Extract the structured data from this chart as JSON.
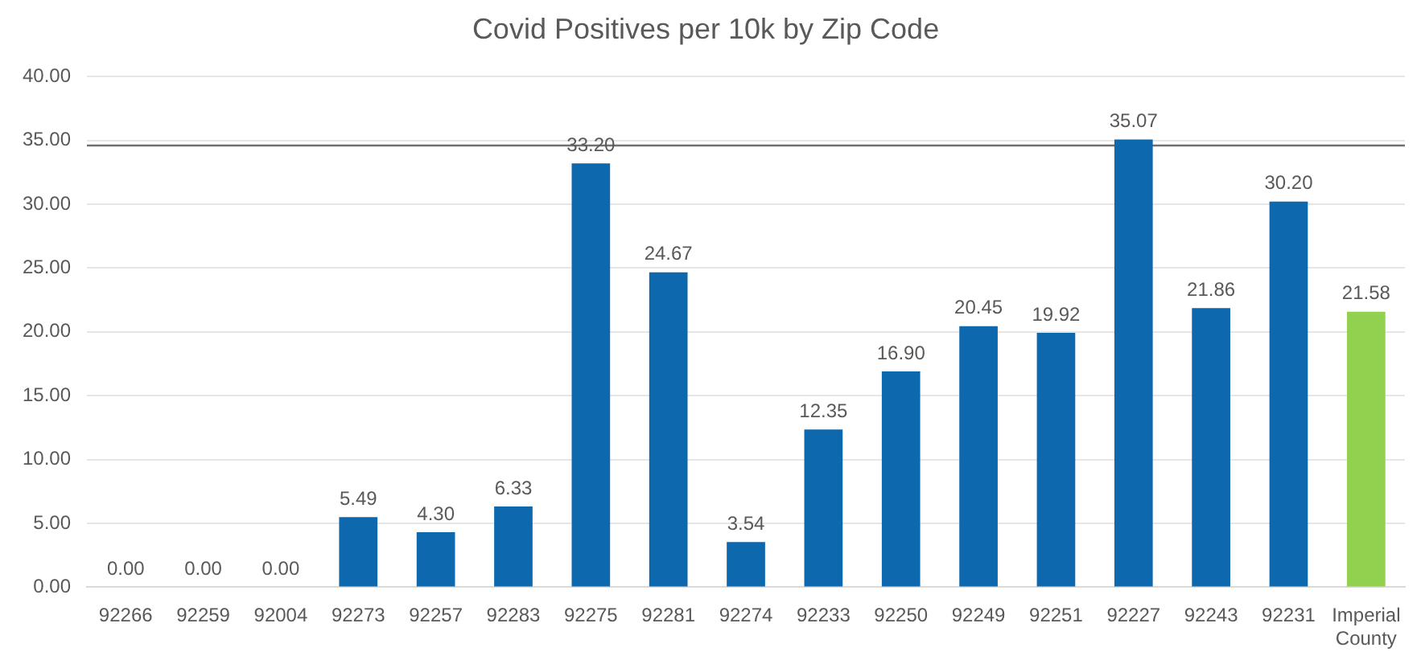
{
  "chart_data": {
    "type": "bar",
    "title": "Covid Positives per 10k by Zip Code",
    "categories": [
      "92266",
      "92259",
      "92004",
      "92273",
      "92257",
      "92283",
      "92275",
      "92281",
      "92274",
      "92233",
      "92250",
      "92249",
      "92251",
      "92227",
      "92243",
      "92231",
      "Imperial County"
    ],
    "values": [
      0,
      0,
      0,
      5.49,
      4.3,
      6.33,
      33.2,
      24.67,
      3.54,
      12.35,
      16.9,
      20.45,
      19.92,
      35.07,
      21.86,
      30.2,
      21.58
    ],
    "value_labels": [
      "0.00",
      "0.00",
      "0.00",
      "5.49",
      "4.30",
      "6.33",
      "33.20",
      "24.67",
      "3.54",
      "12.35",
      "16.90",
      "20.45",
      "19.92",
      "35.07",
      "21.86",
      "30.20",
      "21.58"
    ],
    "colors": [
      "#0e68ad",
      "#0e68ad",
      "#0e68ad",
      "#0e68ad",
      "#0e68ad",
      "#0e68ad",
      "#0e68ad",
      "#0e68ad",
      "#0e68ad",
      "#0e68ad",
      "#0e68ad",
      "#0e68ad",
      "#0e68ad",
      "#0e68ad",
      "#0e68ad",
      "#0e68ad",
      "#92d050"
    ],
    "ylim": [
      0,
      40
    ],
    "yticks": [
      {
        "value": 0,
        "label": "0.00"
      },
      {
        "value": 5,
        "label": "5.00"
      },
      {
        "value": 10,
        "label": "10.00"
      },
      {
        "value": 15,
        "label": "15.00"
      },
      {
        "value": 20,
        "label": "20.00"
      },
      {
        "value": 25,
        "label": "25.00"
      },
      {
        "value": 30,
        "label": "30.00"
      },
      {
        "value": 35,
        "label": "35.00"
      },
      {
        "value": 40,
        "label": "40.00"
      }
    ],
    "ref_lines": [
      {
        "axis": "y",
        "value": 34.6,
        "color": "#707070"
      }
    ],
    "grid": "y",
    "legend": false
  }
}
